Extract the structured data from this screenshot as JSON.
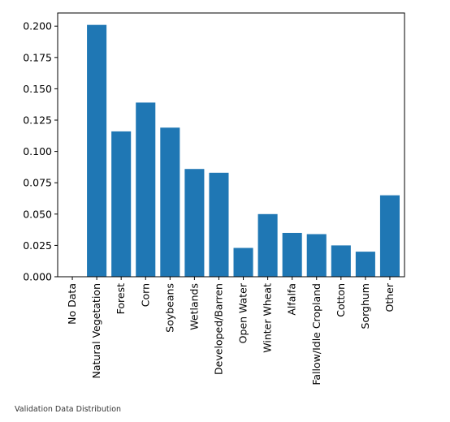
{
  "caption": "Validation Data Distribution",
  "colors": {
    "bar": "#1f77b4",
    "axis": "#000000",
    "background": "#ffffff"
  },
  "chart_data": {
    "type": "bar",
    "title": "",
    "xlabel": "",
    "ylabel": "",
    "grid": false,
    "categories": [
      "No Data",
      "Natural Vegetation",
      "Forest",
      "Corn",
      "Soybeans",
      "Wetlands",
      "Developed/Barren",
      "Open Water",
      "Winter Wheat",
      "Alfalfa",
      "Fallow/Idle Cropland",
      "Cotton",
      "Sorghum",
      "Other"
    ],
    "values": [
      0.0,
      0.201,
      0.116,
      0.139,
      0.119,
      0.086,
      0.083,
      0.023,
      0.05,
      0.035,
      0.034,
      0.025,
      0.02,
      0.065
    ],
    "ylim": [
      0,
      0.2105
    ],
    "yticks": [
      0.0,
      0.025,
      0.05,
      0.075,
      0.1,
      0.125,
      0.15,
      0.175,
      0.2
    ],
    "ytick_labels": [
      "0.000",
      "0.025",
      "0.050",
      "0.075",
      "0.100",
      "0.125",
      "0.150",
      "0.175",
      "0.200"
    ]
  }
}
